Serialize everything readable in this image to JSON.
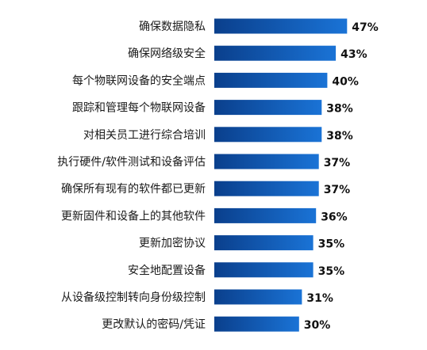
{
  "chart_data": {
    "type": "bar",
    "orientation": "horizontal",
    "categories": [
      "确保数据隐私",
      "确保网络级安全",
      "每个物联网设备的安全端点",
      "跟踪和管理每个物联网设备",
      "对相关员工进行综合培训",
      "执行硬件/软件测试和设备评估",
      "确保所有现有的软件都已更新",
      "更新固件和设备上的其他软件",
      "更新加密协议",
      "安全地配置设备",
      "从设备级控制转向身份级控制",
      "更改默认的密码/凭证"
    ],
    "values": [
      47,
      43,
      40,
      38,
      38,
      37,
      37,
      36,
      35,
      35,
      31,
      30
    ],
    "value_labels": [
      "47%",
      "43%",
      "40%",
      "38%",
      "38%",
      "37%",
      "37%",
      "36%",
      "35%",
      "35%",
      "31%",
      "30%"
    ],
    "unit": "%",
    "xlim": [
      0,
      47
    ],
    "grid": false,
    "legend": "none",
    "colors": {
      "bar_left": "#0a3f8c",
      "bar_right": "#1a73d6"
    }
  }
}
